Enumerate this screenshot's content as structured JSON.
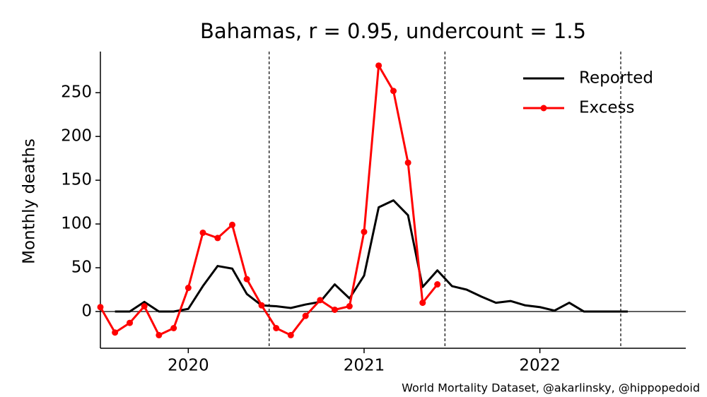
{
  "chart_data": {
    "type": "line",
    "title": "Bahamas, r = 0.95, undercount = 1.5",
    "ylabel": "Monthly deaths",
    "source": "World Mortality Dataset, @akarlinsky, @hippopedoid",
    "xlim": [
      2019.5,
      2022.83
    ],
    "xticks": [
      2020,
      2021,
      2022
    ],
    "ylim": [
      -42,
      297
    ],
    "yticks": [
      0,
      50,
      100,
      150,
      200,
      250
    ],
    "vlines": [
      2020.46,
      2021.46,
      2022.46
    ],
    "zero_line": true,
    "legend": "upper-right",
    "series": [
      {
        "name": "Reported",
        "color": "#000000",
        "markers": false,
        "x": [
          2019.583,
          2019.667,
          2019.75,
          2019.833,
          2019.917,
          2020.0,
          2020.083,
          2020.167,
          2020.25,
          2020.333,
          2020.417,
          2020.5,
          2020.583,
          2020.667,
          2020.75,
          2020.833,
          2020.917,
          2021.0,
          2021.083,
          2021.167,
          2021.25,
          2021.333,
          2021.417,
          2021.5,
          2021.583,
          2021.667,
          2021.75,
          2021.833,
          2021.917,
          2022.0,
          2022.083,
          2022.167,
          2022.25,
          2022.333,
          2022.417,
          2022.5
        ],
        "values": [
          0,
          0,
          11,
          0,
          0,
          3,
          29,
          52,
          49,
          20,
          7,
          6,
          4,
          8,
          11,
          31,
          15,
          41,
          119,
          127,
          110,
          28,
          47,
          29,
          25,
          17,
          10,
          12,
          7,
          5,
          1,
          10,
          0,
          0,
          0,
          0
        ]
      },
      {
        "name": "Excess",
        "color": "#ff0000",
        "markers": true,
        "x": [
          2019.5,
          2019.583,
          2019.667,
          2019.75,
          2019.833,
          2019.917,
          2020.0,
          2020.083,
          2020.167,
          2020.25,
          2020.333,
          2020.417,
          2020.5,
          2020.583,
          2020.667,
          2020.75,
          2020.833,
          2020.917,
          2021.0,
          2021.083,
          2021.167,
          2021.25,
          2021.333,
          2021.417
        ],
        "values": [
          5,
          -24,
          -13,
          6,
          -27,
          -19,
          27,
          90,
          84,
          99,
          37,
          7,
          -19,
          -27,
          -5,
          13,
          2,
          6,
          91,
          281,
          252,
          170,
          10,
          31
        ]
      }
    ]
  }
}
